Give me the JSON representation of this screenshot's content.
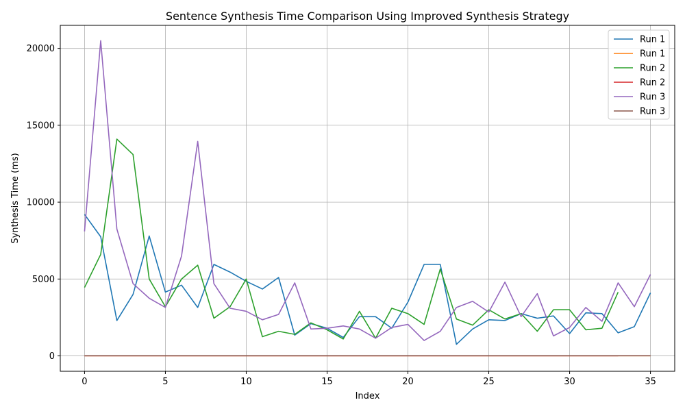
{
  "chart_data": {
    "type": "line",
    "title": "Sentence Synthesis Time Comparison Using Improved Synthesis Strategy",
    "xlabel": "Index",
    "ylabel": "Synthesis Time (ms)",
    "xlim": [
      -1.5,
      36.5
    ],
    "ylim": [
      -1000,
      21500
    ],
    "xticks": [
      0,
      5,
      10,
      15,
      20,
      25,
      30,
      35
    ],
    "yticks": [
      0,
      5000,
      10000,
      15000,
      20000
    ],
    "grid": true,
    "legend_position": "top-right",
    "series": [
      {
        "name": "Run 1",
        "color": "#1f77b4",
        "x": [
          0,
          1,
          2,
          3,
          4,
          5,
          6,
          7,
          8,
          9,
          10,
          11,
          12,
          13,
          14,
          15,
          16,
          17,
          18,
          19,
          20,
          21,
          22,
          23,
          24,
          25,
          26,
          27,
          28,
          29,
          30,
          31,
          32,
          33,
          34,
          35
        ],
        "values": [
          9200,
          7750,
          2300,
          4000,
          7800,
          4150,
          4600,
          3150,
          5950,
          5450,
          4850,
          4350,
          5100,
          1350,
          2100,
          1800,
          1200,
          2550,
          2550,
          1800,
          3500,
          5950,
          5950,
          750,
          1750,
          2350,
          2300,
          2750,
          2450,
          2600,
          1450,
          2800,
          2750,
          1500,
          1900,
          4100
        ]
      },
      {
        "name": "Run 1",
        "color": "#ff7f0e",
        "x": [
          0,
          1,
          2,
          3,
          4,
          5,
          6,
          7,
          8,
          9,
          10,
          11,
          12,
          13,
          14,
          15,
          16,
          17,
          18,
          19,
          20,
          21,
          22,
          23,
          24,
          25,
          26,
          27,
          28,
          29,
          30,
          31,
          32,
          33,
          34,
          35
        ],
        "values": [
          12,
          12,
          12,
          12,
          12,
          12,
          12,
          12,
          12,
          12,
          12,
          12,
          12,
          12,
          12,
          12,
          12,
          12,
          12,
          12,
          12,
          12,
          12,
          12,
          12,
          12,
          12,
          12,
          12,
          12,
          12,
          12,
          12,
          12,
          12,
          12
        ]
      },
      {
        "name": "Run 2",
        "color": "#2ca02c",
        "x": [
          0,
          1,
          2,
          3,
          4,
          5,
          6,
          7,
          8,
          9,
          10,
          11,
          12,
          13,
          14,
          15,
          16,
          17,
          18,
          19,
          20,
          21,
          22,
          23,
          24,
          25,
          26,
          27,
          28,
          29,
          30,
          31,
          32,
          33
        ],
        "values": [
          4450,
          6600,
          14100,
          13100,
          5000,
          3200,
          5000,
          5900,
          2450,
          3200,
          5000,
          1250,
          1600,
          1400,
          2150,
          1700,
          1100,
          2900,
          1150,
          3100,
          2750,
          2050,
          5650,
          2400,
          2000,
          3000,
          2400,
          2750,
          1600,
          3000,
          3000,
          1700,
          1800,
          4150
        ]
      },
      {
        "name": "Run 2",
        "color": "#d62728",
        "x": [
          0,
          1,
          2,
          3,
          4,
          5,
          6,
          7,
          8,
          9,
          10,
          11,
          12,
          13,
          14,
          15,
          16,
          17,
          18,
          19,
          20,
          21,
          22,
          23,
          24,
          25,
          26,
          27,
          28,
          29,
          30,
          31,
          32,
          33
        ],
        "values": [
          12,
          12,
          12,
          12,
          12,
          12,
          12,
          12,
          12,
          12,
          12,
          12,
          12,
          12,
          12,
          12,
          12,
          12,
          12,
          12,
          12,
          12,
          12,
          12,
          12,
          12,
          12,
          12,
          12,
          12,
          12,
          12,
          12,
          12
        ]
      },
      {
        "name": "Run 3",
        "color": "#9467bd",
        "x": [
          0,
          1,
          2,
          3,
          4,
          5,
          6,
          7,
          8,
          9,
          10,
          11,
          12,
          13,
          14,
          15,
          16,
          17,
          18,
          19,
          20,
          21,
          22,
          23,
          24,
          25,
          26,
          27,
          28,
          29,
          30,
          31,
          32,
          33,
          34,
          35
        ],
        "values": [
          8100,
          20500,
          8250,
          4700,
          3750,
          3150,
          6500,
          13950,
          4700,
          3100,
          2900,
          2350,
          2700,
          4750,
          1750,
          1800,
          1950,
          1750,
          1150,
          1850,
          2050,
          1000,
          1600,
          3150,
          3550,
          2850,
          4800,
          2550,
          4050,
          1300,
          1850,
          3150,
          2250,
          4750,
          3200,
          5300
        ]
      },
      {
        "name": "Run 3",
        "color": "#8c564b",
        "x": [
          0,
          1,
          2,
          3,
          4,
          5,
          6,
          7,
          8,
          9,
          10,
          11,
          12,
          13,
          14,
          15,
          16,
          17,
          18,
          19,
          20,
          21,
          22,
          23,
          24,
          25,
          26,
          27,
          28,
          29,
          30,
          31,
          32,
          33,
          34,
          35
        ],
        "values": [
          12,
          12,
          12,
          12,
          12,
          12,
          12,
          12,
          12,
          12,
          12,
          12,
          12,
          12,
          12,
          12,
          12,
          12,
          12,
          12,
          12,
          12,
          12,
          12,
          12,
          12,
          12,
          12,
          12,
          12,
          12,
          12,
          12,
          12,
          12,
          12
        ]
      }
    ]
  }
}
